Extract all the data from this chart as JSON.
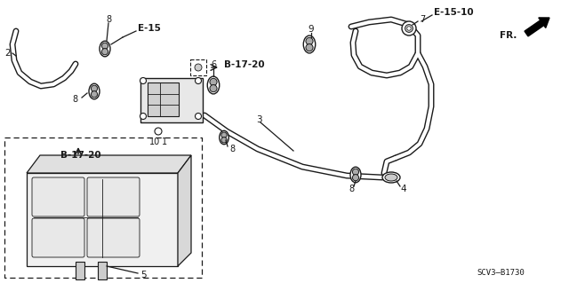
{
  "bg_color": "#ffffff",
  "diagram_code": "SCV3–B1730",
  "line_color": "#1a1a1a",
  "labels": {
    "E15": "E-15",
    "E1510": "E-15-10",
    "B1720a": "B-17-20",
    "B1720b": "B-17-20",
    "FR": "FR.",
    "num1": "1",
    "num2": "2",
    "num3": "3",
    "num4": "4",
    "num5": "5",
    "num6": "6",
    "num7": "7",
    "num8a": "8",
    "num8b": "8",
    "num8c": "8",
    "num8d": "8",
    "num9": "9",
    "num10": "10"
  },
  "hose_lw": 3.5,
  "thin_lw": 0.9,
  "clamp_size": 7
}
